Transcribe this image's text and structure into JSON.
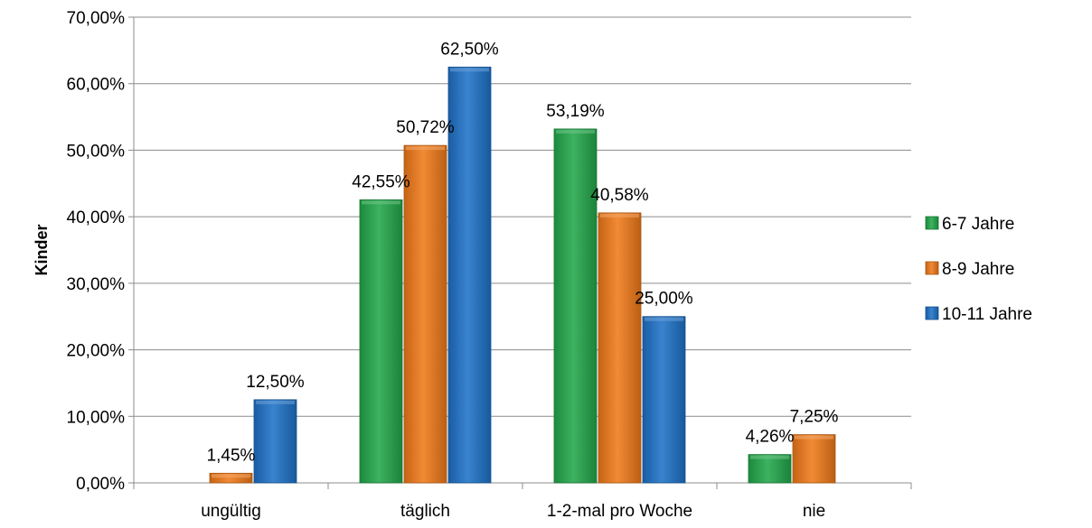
{
  "chart_data": {
    "type": "bar",
    "title": "",
    "xlabel": "",
    "ylabel": "Kinder",
    "ylim": [
      0,
      70
    ],
    "yticks": [
      "0,00%",
      "10,00%",
      "20,00%",
      "30,00%",
      "40,00%",
      "50,00%",
      "60,00%",
      "70,00%"
    ],
    "categories": [
      "ungültig",
      "täglich",
      "1-2-mal pro Woche",
      "nie"
    ],
    "series": [
      {
        "name": "6-7 Jahre",
        "color": "#22a84a",
        "values": [
          null,
          42.55,
          53.19,
          4.26
        ],
        "labels": [
          "",
          "42,55%",
          "53,19%",
          "4,26%"
        ]
      },
      {
        "name": "8-9 Jahre",
        "color": "#f07a1a",
        "values": [
          1.45,
          50.72,
          40.58,
          7.25
        ],
        "labels": [
          "1,45%",
          "50,72%",
          "40,58%",
          "7,25%"
        ]
      },
      {
        "name": "10-11 Jahre",
        "color": "#1e72c8",
        "values": [
          12.5,
          62.5,
          25.0,
          null
        ],
        "labels": [
          "12,50%",
          "62,50%",
          "25,00%",
          ""
        ]
      }
    ],
    "grid": true,
    "legend_position": "right"
  }
}
